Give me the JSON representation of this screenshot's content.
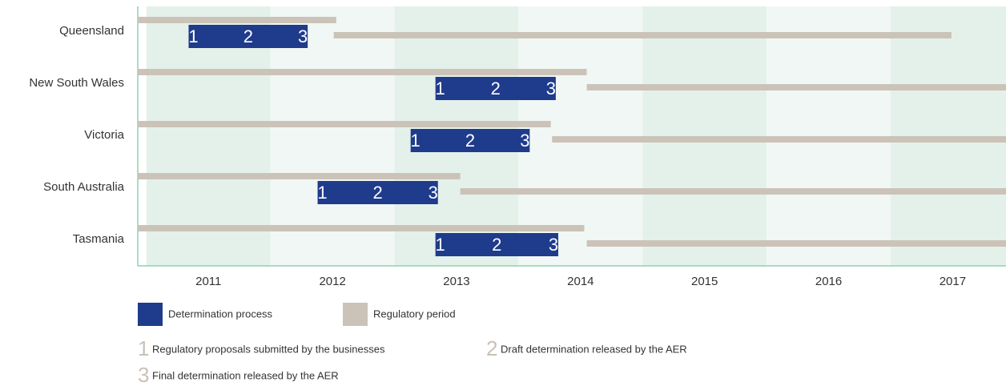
{
  "chart_data": {
    "type": "gantt",
    "categories": [
      "Queensland",
      "New South Wales",
      "Victoria",
      "South Australia",
      "Tasmania"
    ],
    "series": [
      {
        "name": "Determination process",
        "color": "#1f3b8c",
        "values": [
          [
            2010.84,
            2011.8
          ],
          [
            2012.83,
            2013.8
          ],
          [
            2012.63,
            2013.59
          ],
          [
            2011.88,
            2012.85
          ],
          [
            2012.83,
            2013.82
          ]
        ]
      },
      {
        "name": "Regulatory period",
        "color": "#cbc3b8",
        "values": [
          [
            [
              2010.43,
              2012.03
            ],
            [
              2012.01,
              2016.99
            ]
          ],
          [
            [
              2010.43,
              2014.05
            ],
            [
              2014.05,
              2017.43
            ]
          ],
          [
            [
              2010.43,
              2013.76
            ],
            [
              2013.77,
              2017.43
            ]
          ],
          [
            [
              2010.43,
              2013.03
            ],
            [
              2013.03,
              2017.43
            ]
          ],
          [
            [
              2010.43,
              2014.03
            ],
            [
              2014.05,
              2017.43
            ]
          ]
        ]
      }
    ],
    "xlim": [
      2010.43,
      2017.43
    ],
    "xticks": [
      2011,
      2012,
      2013,
      2014,
      2015,
      2016,
      2017
    ],
    "bands": true,
    "steps": [
      {
        "number": 1,
        "label": "Regulatory proposals submitted by the businesses"
      },
      {
        "number": 2,
        "label": "Draft determination released by the AER"
      },
      {
        "number": 3,
        "label": "Final determination released by the AER"
      }
    ]
  }
}
